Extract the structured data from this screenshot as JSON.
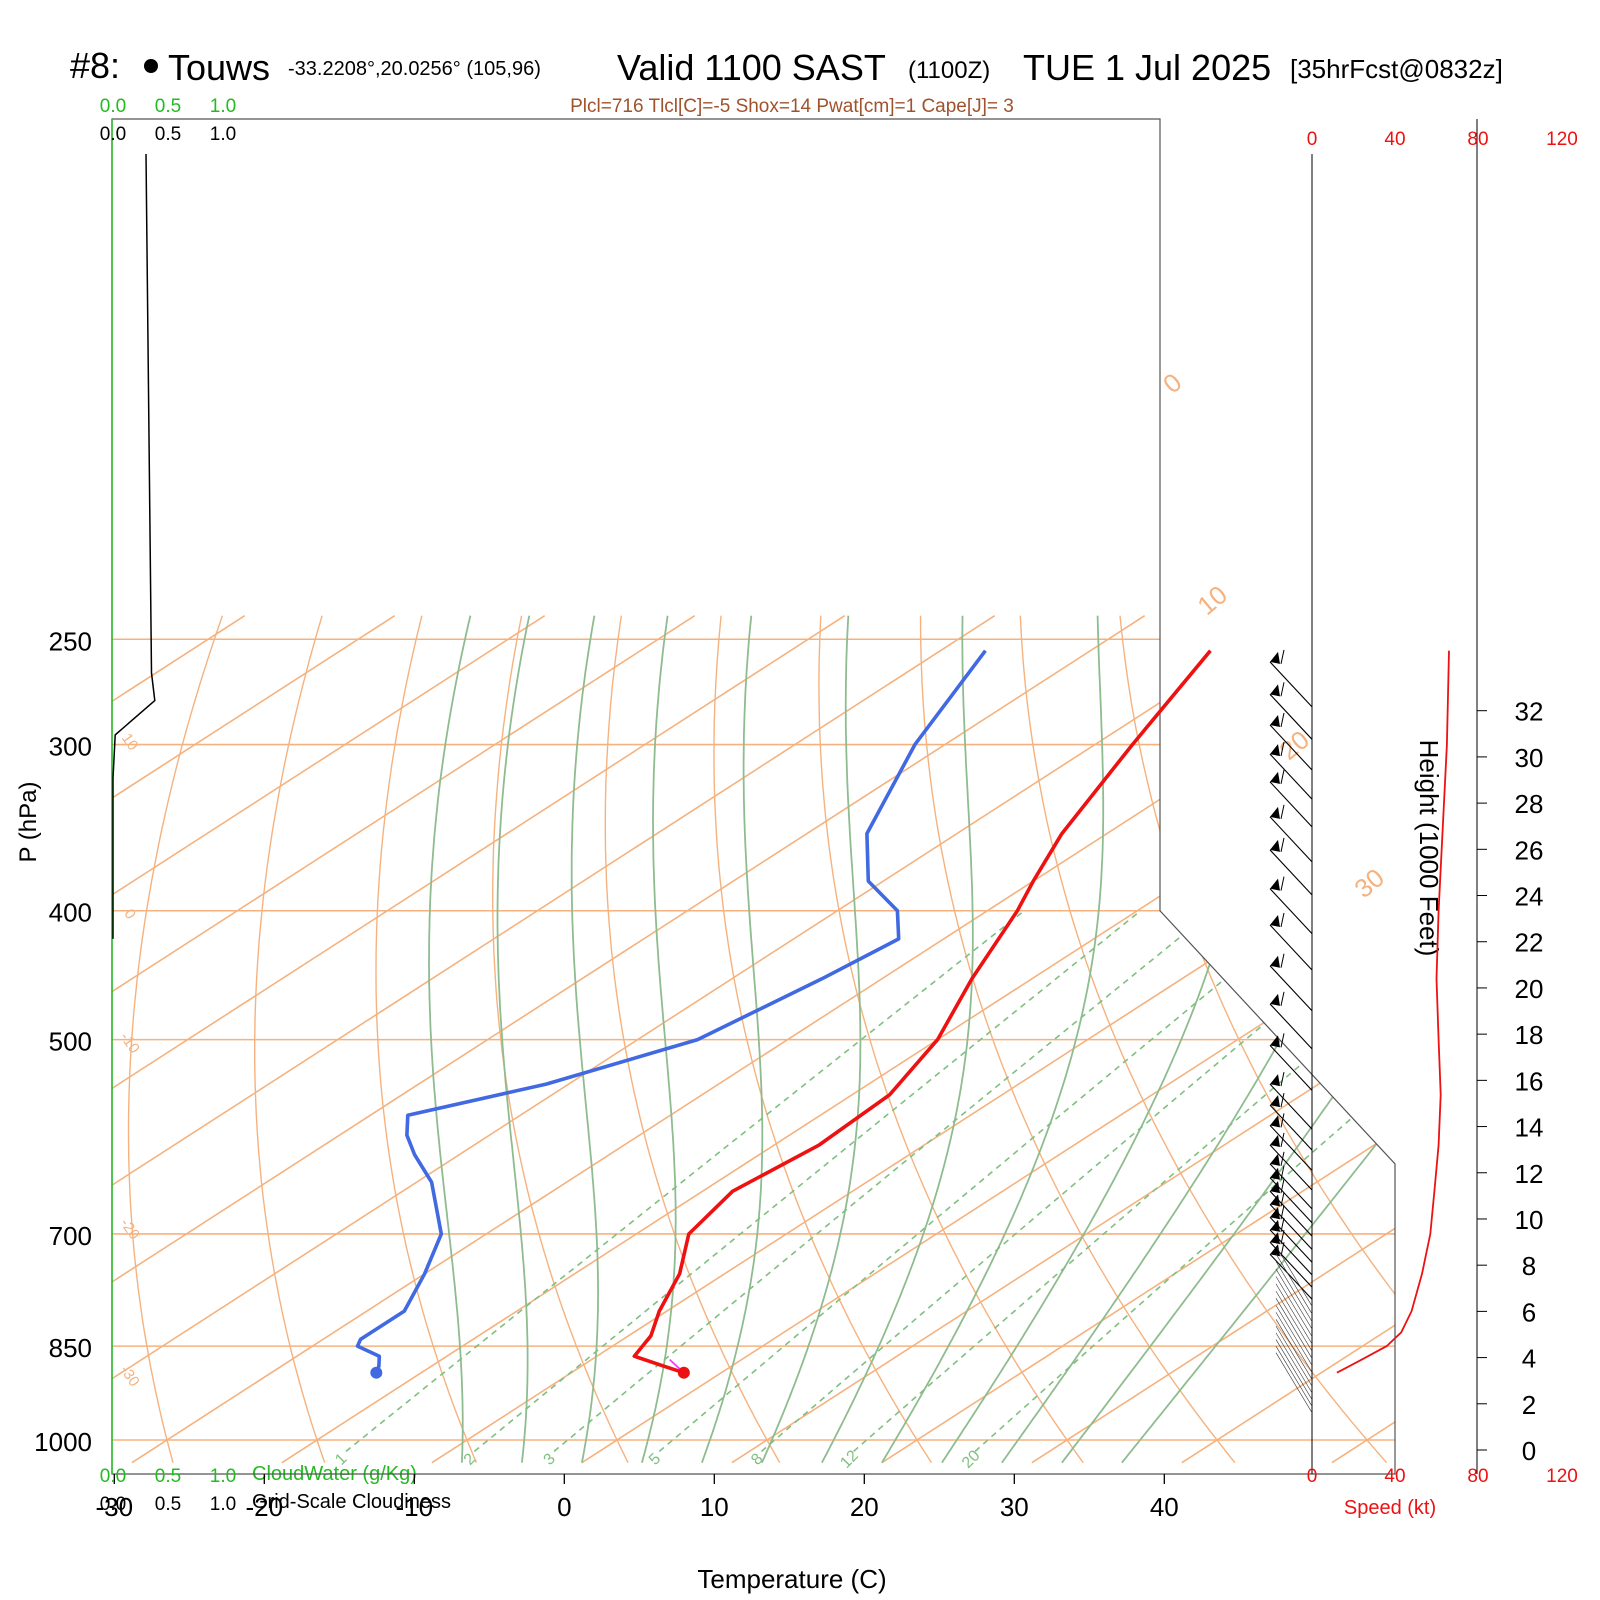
{
  "header": {
    "station": "#8:",
    "station_name": "Touws",
    "coords": "-33.2208°,20.0256° (105,96)",
    "valid": "Valid 1100 SAST",
    "zulu": "(1100Z)",
    "date": "TUE 1 Jul 2025",
    "forecast": "[35hrFcst@0832z]",
    "indices": "Plcl=716 Tlcl[C]=-5 Shox=14 Pwat[cm]=1 Cape[J]= 3"
  },
  "labels": {
    "ylabel": "P (hPa)",
    "xlabel": "Temperature (C)",
    "height_label": "Height (1000 Feet)",
    "speed_label": "Speed (kt)",
    "cloudwater_label": "CloudWater (g/Kg)",
    "cloudiness_label": "Grid-Scale Cloudiness"
  },
  "colors": {
    "temperature": "#ee1111",
    "dewpoint": "#4169e1",
    "isotherm": "#f5b27e",
    "dry_adiabat": "#8fbc8f",
    "mixing_ratio": "#7fbf7f",
    "cloudwater": "#22bb22",
    "speed": "#ee1111",
    "parcel": "#ff33ff"
  },
  "chart_data": {
    "type": "skew-t",
    "pressure_ticks": [
      250,
      300,
      400,
      500,
      700,
      850,
      1000
    ],
    "temp_ticks": [
      -30,
      -20,
      -10,
      0,
      10,
      20,
      30,
      40
    ],
    "xlim": [
      -30,
      40
    ],
    "ylim_hpa": [
      250,
      1030
    ],
    "isotherm_labels": [
      "10",
      "0",
      "-10",
      "-20",
      "-30",
      "0",
      "10",
      "20",
      "30"
    ],
    "isotherm_label_temps": [
      10,
      0,
      -10,
      -20,
      -30,
      0,
      10,
      20,
      30
    ],
    "isotherm_label_sides": [
      "left",
      "left",
      "left",
      "left",
      "left",
      "right",
      "right",
      "right",
      "right"
    ],
    "mixing_ratio_labels": [
      "1",
      "2",
      "3",
      "5",
      "8",
      "12",
      "20"
    ],
    "temperature_profile": {
      "p": [
        255,
        300,
        350,
        380,
        400,
        450,
        500,
        550,
        600,
        650,
        700,
        750,
        800,
        835,
        850,
        865,
        880,
        890
      ],
      "t": [
        -42,
        -37.5,
        -33,
        -30,
        -28,
        -24,
        -20,
        -17.5,
        -17,
        -18,
        -16.5,
        -13,
        -10.5,
        -8.5,
        -8,
        -7.5,
        -4.5,
        -2.5
      ]
    },
    "dewpoint_profile": {
      "p": [
        255,
        300,
        350,
        380,
        400,
        420,
        450,
        500,
        540,
        570,
        590,
        610,
        640,
        700,
        750,
        800,
        830,
        840,
        850,
        865,
        880,
        890
      ],
      "td": [
        -57,
        -52,
        -46,
        -41,
        -36,
        -33,
        -34,
        -36,
        -41.5,
        -47.5,
        -45.5,
        -43,
        -39,
        -33,
        -30,
        -27.5,
        -27.5,
        -27.5,
        -27,
        -24.5,
        -23.5,
        -23
      ]
    },
    "parcel_segment": {
      "p": [
        870,
        890
      ],
      "t": [
        -4.8,
        -2.5
      ]
    },
    "cloud_water_axis": [
      "0.0",
      "0.5",
      "1.0"
    ],
    "cloudiness_axis": [
      "0.0",
      "0.5",
      "1.0"
    ],
    "cloudiness_profile": {
      "p": [
        265,
        278,
        295,
        318,
        360,
        420
      ],
      "v": [
        0.35,
        0.38,
        0.02,
        0.0,
        0.0,
        0.0
      ]
    },
    "height_ticks_kft": [
      0,
      2,
      4,
      6,
      8,
      10,
      12,
      14,
      16,
      18,
      20,
      22,
      24,
      26,
      28,
      30,
      32
    ],
    "speed_ticks": [
      "0",
      "40",
      "80",
      "120"
    ],
    "wind_speed_profile": {
      "p": [
        255,
        300,
        400,
        450,
        500,
        550,
        600,
        650,
        700,
        750,
        800,
        830,
        850,
        870,
        880,
        890
      ],
      "kt": [
        66,
        65,
        61,
        60,
        61,
        62,
        61,
        59,
        57,
        53,
        48,
        43,
        36,
        24,
        18,
        12
      ]
    },
    "wind_barb_speeds_kt": [
      60,
      60,
      60,
      60,
      60,
      60,
      60,
      60,
      60,
      60,
      60,
      60,
      60,
      60,
      60,
      60,
      55,
      55,
      55,
      55,
      55,
      55,
      55,
      55
    ],
    "wind_barb_pressures": [
      260,
      275,
      290,
      305,
      320,
      340,
      360,
      385,
      410,
      440,
      470,
      505,
      540,
      560,
      580,
      600,
      620,
      635,
      650,
      665,
      680,
      695,
      710,
      725
    ]
  }
}
